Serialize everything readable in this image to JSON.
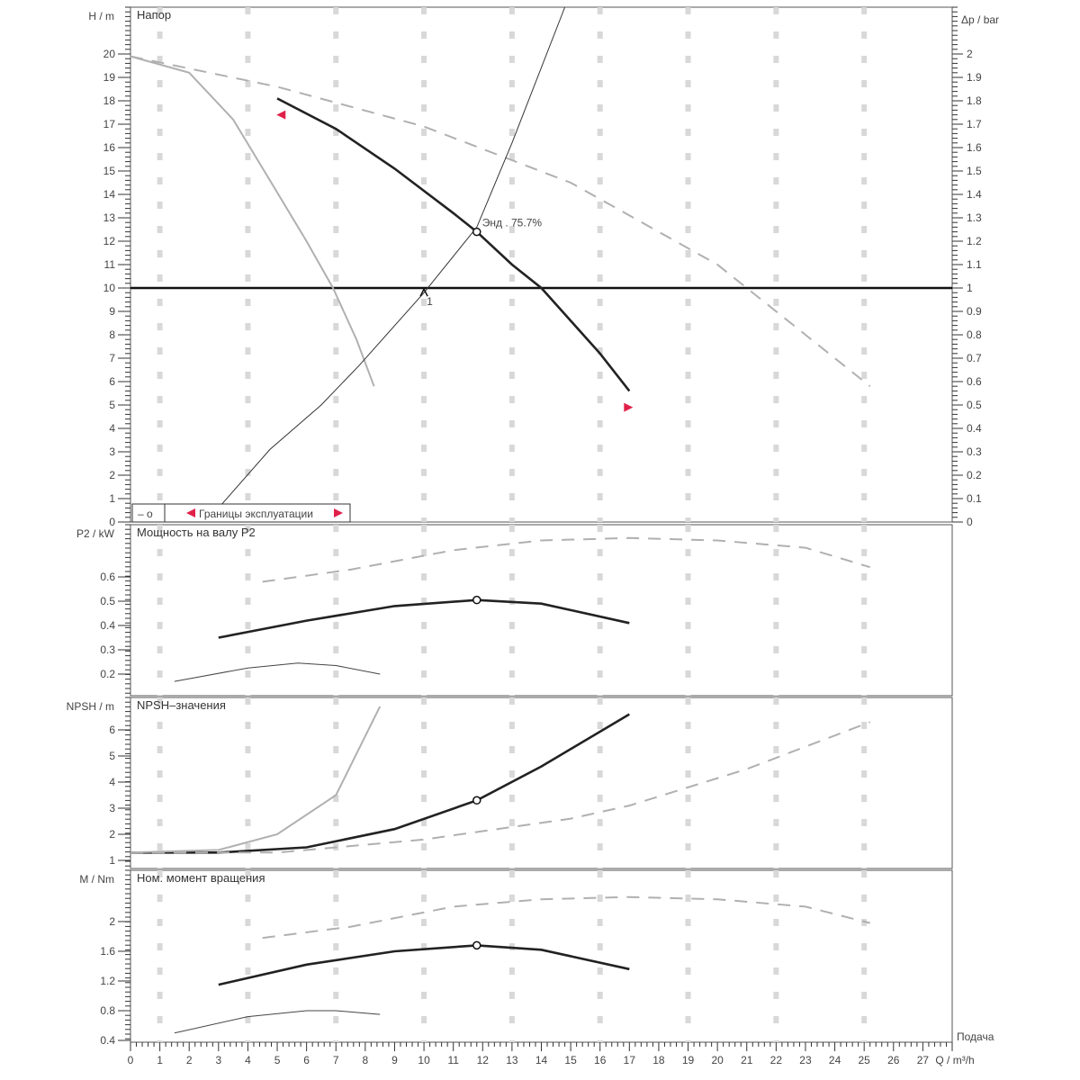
{
  "chart_data": {
    "type": "line",
    "x_axis": {
      "label": "Q / m³/h",
      "secondary_label": "Подача",
      "range": [
        0,
        28
      ],
      "ticks": [
        0,
        1,
        2,
        3,
        4,
        5,
        6,
        7,
        8,
        9,
        10,
        11,
        12,
        13,
        14,
        15,
        16,
        17,
        18,
        19,
        20,
        21,
        22,
        23,
        24,
        25,
        26,
        27
      ]
    },
    "colors": {
      "main": "#222222",
      "secondary": "#b0b0b0",
      "limit_marker": "#e0204a",
      "grid": "#d8d8d8"
    },
    "panels": [
      {
        "id": "head",
        "title": "Напор",
        "ylabel": "H / m",
        "ylim": [
          0,
          22
        ],
        "yticks": [
          0,
          1,
          2,
          3,
          4,
          5,
          6,
          7,
          8,
          9,
          10,
          11,
          12,
          13,
          14,
          15,
          16,
          17,
          18,
          19,
          20
        ],
        "right_axis": {
          "label": "Δp / bar",
          "ylim": [
            0,
            2.2
          ],
          "ticks": [
            0,
            0.1,
            0.2,
            0.3,
            0.4,
            0.5,
            0.6,
            0.7,
            0.8,
            0.9,
            1,
            1.1,
            1.2,
            1.3,
            1.4,
            1.5,
            1.6,
            1.7,
            1.8,
            1.9,
            2
          ]
        },
        "series": [
          {
            "style": "main",
            "points": [
              [
                5,
                18.1
              ],
              [
                7,
                16.8
              ],
              [
                9,
                15.1
              ],
              [
                11,
                13.2
              ],
              [
                11.8,
                12.4
              ],
              [
                13,
                11.0
              ],
              [
                14,
                10.0
              ],
              [
                15,
                8.6
              ],
              [
                16,
                7.2
              ],
              [
                17,
                5.6
              ]
            ]
          },
          {
            "style": "dashed",
            "points": [
              [
                0,
                19.9
              ],
              [
                5,
                18.6
              ],
              [
                10,
                16.9
              ],
              [
                15,
                14.5
              ],
              [
                20,
                11.0
              ],
              [
                25.2,
                5.8
              ]
            ]
          },
          {
            "style": "thin-gray",
            "points": [
              [
                0,
                19.9
              ],
              [
                2,
                19.2
              ],
              [
                3.5,
                17.2
              ],
              [
                4.75,
                14.6
              ],
              [
                6,
                12.0
              ],
              [
                6.9,
                10.0
              ],
              [
                7.7,
                7.8
              ],
              [
                8.3,
                5.8
              ]
            ]
          },
          {
            "style": "system",
            "points": [
              [
                3,
                0.6
              ],
              [
                4.75,
                3.1
              ],
              [
                6.5,
                5.0
              ],
              [
                7.8,
                6.7
              ],
              [
                10,
                9.8
              ],
              [
                11.8,
                12.6
              ],
              [
                13,
                16.2
              ],
              [
                14.8,
                22.0
              ]
            ]
          }
        ],
        "reference_line": {
          "y": 10
        },
        "duty_point": {
          "x": 11.8,
          "y": 12.4,
          "label": "Энд . 75.7%"
        },
        "intersection_marker": {
          "x": 10,
          "y": 9.8,
          "label": "1"
        },
        "limit_markers": [
          {
            "x": 5.1,
            "y": 17.4,
            "dir": "left"
          },
          {
            "x": 17,
            "y": 4.9,
            "dir": "right"
          }
        ],
        "legend": {
          "position": "bottom-left",
          "items": [
            "– o",
            "Границы эксплуатации"
          ]
        }
      },
      {
        "id": "power",
        "title": "Мощность на валу P2",
        "ylabel": "P2 / kW",
        "ylim": [
          0.111,
          0.815
        ],
        "yticks": [
          0.2,
          0.3,
          0.4,
          0.5,
          0.6
        ],
        "series": [
          {
            "style": "main",
            "points": [
              [
                3,
                0.35
              ],
              [
                6,
                0.42
              ],
              [
                9,
                0.48
              ],
              [
                11.8,
                0.505
              ],
              [
                14,
                0.49
              ],
              [
                17,
                0.41
              ]
            ]
          },
          {
            "style": "dashed",
            "points": [
              [
                4.5,
                0.58
              ],
              [
                7.5,
                0.63
              ],
              [
                11,
                0.71
              ],
              [
                14,
                0.75
              ],
              [
                17,
                0.76
              ],
              [
                20,
                0.75
              ],
              [
                23,
                0.72
              ],
              [
                25.2,
                0.64
              ]
            ]
          },
          {
            "style": "thin",
            "points": [
              [
                1.5,
                0.17
              ],
              [
                4,
                0.225
              ],
              [
                5.7,
                0.245
              ],
              [
                7,
                0.235
              ],
              [
                8.5,
                0.2
              ]
            ]
          }
        ],
        "duty_point": {
          "x": 11.8,
          "y": 0.505
        }
      },
      {
        "id": "npsh",
        "title": "NPSH–значения",
        "ylabel": "NPSH / m",
        "ylim": [
          0.69,
          7.24
        ],
        "yticks": [
          1,
          2,
          3,
          4,
          5,
          6
        ],
        "series": [
          {
            "style": "main",
            "points": [
              [
                0,
                1.3
              ],
              [
                3,
                1.3
              ],
              [
                6,
                1.5
              ],
              [
                9,
                2.2
              ],
              [
                11.8,
                3.3
              ],
              [
                14,
                4.6
              ],
              [
                17,
                6.6
              ]
            ]
          },
          {
            "style": "dashed",
            "points": [
              [
                0,
                1.3
              ],
              [
                5,
                1.3
              ],
              [
                10,
                1.8
              ],
              [
                15,
                2.6
              ],
              [
                17,
                3.1
              ],
              [
                21,
                4.5
              ],
              [
                25.2,
                6.3
              ]
            ]
          },
          {
            "style": "thin-gray",
            "points": [
              [
                0,
                1.3
              ],
              [
                3,
                1.4
              ],
              [
                5,
                2.0
              ],
              [
                7,
                3.5
              ],
              [
                8.5,
                6.9
              ]
            ]
          }
        ],
        "duty_point": {
          "x": 11.8,
          "y": 3.3
        }
      },
      {
        "id": "torque",
        "title": "Ном. момент вращения",
        "ylabel": "M / Nm",
        "ylim": [
          0.376,
          2.69
        ],
        "yticks": [
          0.4,
          0.8,
          1.2,
          1.6,
          2
        ],
        "series": [
          {
            "style": "main",
            "points": [
              [
                3,
                1.15
              ],
              [
                6,
                1.42
              ],
              [
                9,
                1.6
              ],
              [
                11.8,
                1.68
              ],
              [
                14,
                1.62
              ],
              [
                17,
                1.36
              ]
            ]
          },
          {
            "style": "dashed",
            "points": [
              [
                4.5,
                1.78
              ],
              [
                7.5,
                1.93
              ],
              [
                11,
                2.2
              ],
              [
                14,
                2.3
              ],
              [
                17,
                2.33
              ],
              [
                20,
                2.3
              ],
              [
                23,
                2.2
              ],
              [
                25.2,
                1.98
              ]
            ]
          },
          {
            "style": "thin",
            "points": [
              [
                1.5,
                0.5
              ],
              [
                4,
                0.72
              ],
              [
                6,
                0.8
              ],
              [
                7,
                0.8
              ],
              [
                8.5,
                0.75
              ]
            ]
          }
        ],
        "duty_point": {
          "x": 11.8,
          "y": 1.68
        }
      }
    ]
  }
}
